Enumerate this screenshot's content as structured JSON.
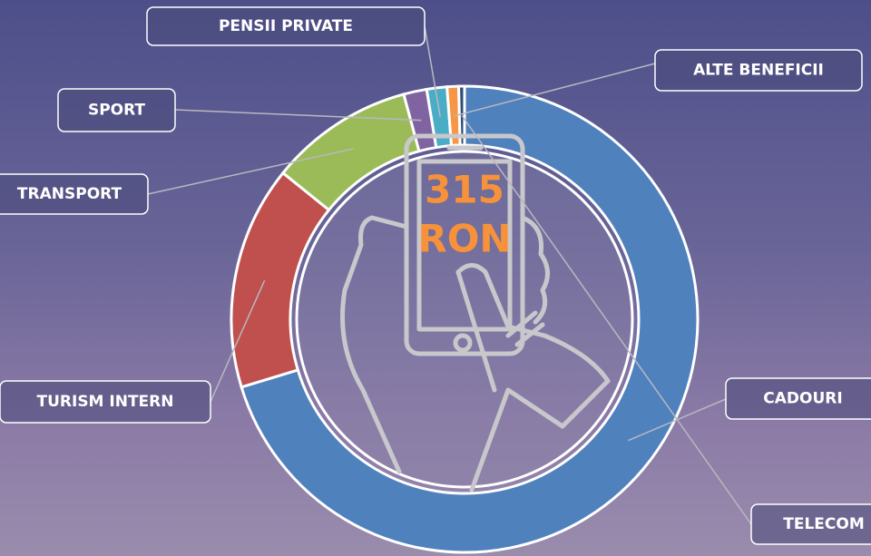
{
  "chart_data": {
    "type": "pie",
    "donut": true,
    "categories": [
      "CADOURI",
      "TURISM INTERN",
      "TRANSPORT",
      "SPORT",
      "PENSII PRIVATE",
      "ALTE BENEFICII",
      "TELECOM"
    ],
    "values": [
      70.3,
      15.5,
      10,
      1.6,
      1.4,
      0.8,
      0.4
    ],
    "colors": [
      "#4f81bd",
      "#c0504d",
      "#9bbb59",
      "#8064a2",
      "#4bacc6",
      "#f79646",
      "#2c4d75"
    ],
    "center_label": [
      "315",
      "RON"
    ]
  }
}
